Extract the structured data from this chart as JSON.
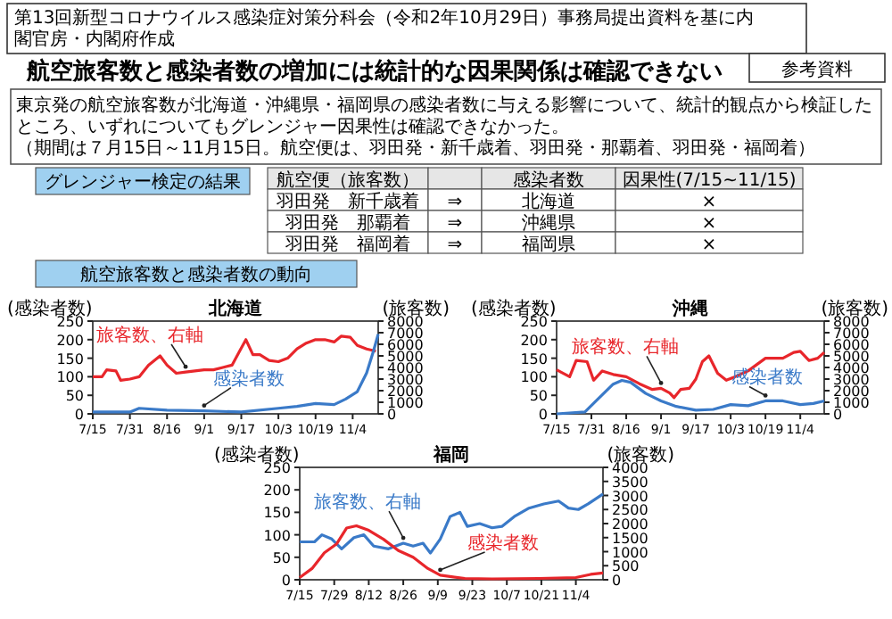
{
  "chart_data": [
    {
      "type": "other",
      "title": "航空旅客数と感染者数の増加には統計的な因果関係は確認できない",
      "annotations": [
        "第13回新型コロナウイルス感染症対策分科会（令和2年10月29日）事務局提出資料を基に内閣官房・内閣府作成",
        "参考資料",
        "東京発の航空旅客数が北海道・沖縄県・福岡県の感染者数に与える影響について、統計的観点から検証した",
        "ところ、いずれについてもグレンジャー因果性は確認できなかった。",
        "（期間は７月15日～11月15日。航空便は、羽田発・新千歳着、羽田発・那覇着、羽田発・福岡着）",
        "グレンジャー検定の結果",
        "航空便（旅客数）",
        "感染者数",
        "因果性(7/15~11/15)",
        "羽田発　新千歳着",
        "⇒",
        "北海道",
        "×",
        "羽田発　那覇着",
        "⇒",
        "沖縄県",
        "×",
        "羽田発　福岡着",
        "⇒",
        "福岡県",
        "×",
        "航空旅客数と感染者数の動向"
      ]
    },
    {
      "type": "line",
      "title": "北海道",
      "ylabel": "(感染者数)",
      "y2label": "(旅客数)",
      "xlim": [
        "--07-15",
        "--11-15"
      ],
      "xticks": [
        {
          "value": "--07-15",
          "label": "7/15"
        },
        {
          "value": "--07-31",
          "label": "7/31"
        },
        {
          "value": "--08-16",
          "label": "8/16"
        },
        {
          "value": "--09-01",
          "label": "9/1"
        },
        {
          "value": "--09-17",
          "label": "9/17"
        },
        {
          "value": "--10-03",
          "label": "10/3"
        },
        {
          "value": "--10-19",
          "label": "10/19"
        },
        {
          "value": "--11-04",
          "label": "11/4"
        }
      ],
      "ylim": [
        0,
        250
      ],
      "yticks": [
        0,
        50,
        100,
        150,
        200,
        250
      ],
      "y2lim": [
        0,
        8000
      ],
      "y2ticks": [
        0,
        1000,
        2000,
        3000,
        4000,
        5000,
        6000,
        7000,
        8000
      ],
      "series": [
        {
          "name": "旅客数、右軸",
          "color": "#e8262b",
          "axis": "y2",
          "x": [
            "--07-15",
            "--07-19",
            "--07-21",
            "--07-25",
            "--07-27",
            "--07-31",
            "--08-04",
            "--08-08",
            "--08-13",
            "--08-16",
            "--08-20",
            "--08-24",
            "--08-28",
            "--09-01",
            "--09-05",
            "--09-09",
            "--09-13",
            "--09-16",
            "--09-19",
            "--09-22",
            "--09-25",
            "--09-29",
            "--10-03",
            "--10-07",
            "--10-11",
            "--10-15",
            "--10-19",
            "--10-23",
            "--10-27",
            "--10-30",
            "--11-03",
            "--11-06",
            "--11-10",
            "--11-14"
          ],
          "values": [
            3200,
            3200,
            3800,
            3700,
            2900,
            3000,
            3200,
            4200,
            5000,
            4200,
            3500,
            3600,
            3700,
            3800,
            3800,
            4000,
            4200,
            5300,
            6400,
            5100,
            5100,
            4600,
            4500,
            4800,
            5600,
            6100,
            6400,
            6400,
            6200,
            6700,
            6600,
            5900,
            5600,
            5400
          ]
        },
        {
          "name": "感染者数",
          "color": "#3a7ac8",
          "x": [
            "--07-15",
            "--07-31",
            "--08-04",
            "--08-16",
            "--09-01",
            "--09-17",
            "--10-03",
            "--10-11",
            "--10-19",
            "--10-27",
            "--11-01",
            "--11-06",
            "--11-10",
            "--11-13",
            "--11-15"
          ],
          "values": [
            5,
            5,
            15,
            10,
            8,
            5,
            15,
            20,
            28,
            25,
            40,
            60,
            110,
            170,
            215
          ]
        }
      ]
    },
    {
      "type": "line",
      "title": "沖縄",
      "ylabel": "(感染者数)",
      "y2label": "(旅客数)",
      "xlim": [
        "--07-15",
        "--11-15"
      ],
      "xticks": [
        {
          "value": "--07-15",
          "label": "7/15"
        },
        {
          "value": "--07-31",
          "label": "7/31"
        },
        {
          "value": "--08-16",
          "label": "8/16"
        },
        {
          "value": "--09-01",
          "label": "9/1"
        },
        {
          "value": "--09-17",
          "label": "9/17"
        },
        {
          "value": "--10-03",
          "label": "10/3"
        },
        {
          "value": "--10-19",
          "label": "10/19"
        },
        {
          "value": "--11-04",
          "label": "11/4"
        }
      ],
      "ylim": [
        0,
        250
      ],
      "yticks": [
        0,
        50,
        100,
        150,
        200,
        250
      ],
      "y2lim": [
        0,
        8000
      ],
      "y2ticks": [
        0,
        1000,
        2000,
        3000,
        4000,
        5000,
        6000,
        7000,
        8000
      ],
      "series": [
        {
          "name": "旅客数、右軸",
          "color": "#e8262b",
          "axis": "y2",
          "x": [
            "--07-15",
            "--07-21",
            "--07-24",
            "--07-29",
            "--08-01",
            "--08-05",
            "--08-10",
            "--08-16",
            "--08-22",
            "--08-28",
            "--09-01",
            "--09-05",
            "--09-07",
            "--09-10",
            "--09-14",
            "--09-17",
            "--09-20",
            "--09-23",
            "--09-27",
            "--10-01",
            "--10-05",
            "--10-11",
            "--10-19",
            "--10-27",
            "--11-01",
            "--11-04",
            "--11-08",
            "--11-12",
            "--11-15"
          ],
          "values": [
            3800,
            3200,
            4600,
            4500,
            2900,
            3700,
            3400,
            3200,
            2600,
            2100,
            2200,
            1800,
            1400,
            2100,
            2200,
            3000,
            4500,
            5000,
            3500,
            2900,
            3200,
            3700,
            4800,
            4800,
            5300,
            5400,
            4600,
            4800,
            5300
          ]
        },
        {
          "name": "感染者数",
          "color": "#3a7ac8",
          "x": [
            "--07-15",
            "--07-28",
            "--08-03",
            "--08-10",
            "--08-14",
            "--08-18",
            "--08-25",
            "--09-01",
            "--09-08",
            "--09-17",
            "--09-25",
            "--10-03",
            "--10-11",
            "--10-19",
            "--10-27",
            "--11-04",
            "--11-10",
            "--11-15"
          ],
          "values": [
            0,
            5,
            40,
            80,
            90,
            85,
            55,
            35,
            20,
            10,
            12,
            25,
            22,
            35,
            35,
            25,
            28,
            35
          ]
        }
      ]
    },
    {
      "type": "line",
      "title": "福岡",
      "ylabel": "(感染者数)",
      "y2label": "(旅客数)",
      "xlim": [
        "--07-15",
        "--11-15"
      ],
      "xticks": [
        {
          "value": "--07-15",
          "label": "7/15"
        },
        {
          "value": "--07-29",
          "label": "7/29"
        },
        {
          "value": "--08-12",
          "label": "8/12"
        },
        {
          "value": "--08-26",
          "label": "8/26"
        },
        {
          "value": "--09-09",
          "label": "9/9"
        },
        {
          "value": "--09-23",
          "label": "9/23"
        },
        {
          "value": "--10-07",
          "label": "10/7"
        },
        {
          "value": "--10-21",
          "label": "10/21"
        },
        {
          "value": "--11-04",
          "label": "11/4"
        }
      ],
      "ylim": [
        0,
        250
      ],
      "yticks": [
        0,
        50,
        100,
        150,
        200,
        250
      ],
      "y2lim": [
        0,
        4000
      ],
      "y2ticks": [
        0,
        500,
        1000,
        1500,
        2000,
        2500,
        3000,
        3500,
        4000
      ],
      "series": [
        {
          "name": "旅客数、右軸",
          "color": "#3a7ac8",
          "axis": "y2",
          "x": [
            "--07-15",
            "--07-21",
            "--07-24",
            "--07-28",
            "--08-01",
            "--08-06",
            "--08-10",
            "--08-14",
            "--08-20",
            "--08-26",
            "--08-30",
            "--09-03",
            "--09-06",
            "--09-10",
            "--09-14",
            "--09-18",
            "--09-21",
            "--09-26",
            "--10-01",
            "--10-05",
            "--10-10",
            "--10-16",
            "--10-22",
            "--10-28",
            "--11-01",
            "--11-05",
            "--11-09",
            "--11-15"
          ],
          "values": [
            1350,
            1350,
            1600,
            1450,
            1100,
            1500,
            1600,
            1200,
            1100,
            1300,
            1200,
            1300,
            950,
            1450,
            2250,
            2400,
            1900,
            2000,
            1850,
            1900,
            2250,
            2550,
            2700,
            2800,
            2550,
            2500,
            2700,
            3050
          ]
        },
        {
          "name": "感染者数",
          "color": "#e8262b",
          "x": [
            "--07-15",
            "--07-20",
            "--07-25",
            "--07-30",
            "--08-03",
            "--08-07",
            "--08-12",
            "--08-18",
            "--08-24",
            "--08-30",
            "--09-05",
            "--09-10",
            "--09-20",
            "--10-01",
            "--10-20",
            "--11-04",
            "--11-10",
            "--11-15"
          ],
          "values": [
            5,
            25,
            60,
            80,
            115,
            120,
            110,
            90,
            65,
            50,
            25,
            10,
            3,
            2,
            3,
            5,
            12,
            15
          ]
        }
      ]
    }
  ]
}
